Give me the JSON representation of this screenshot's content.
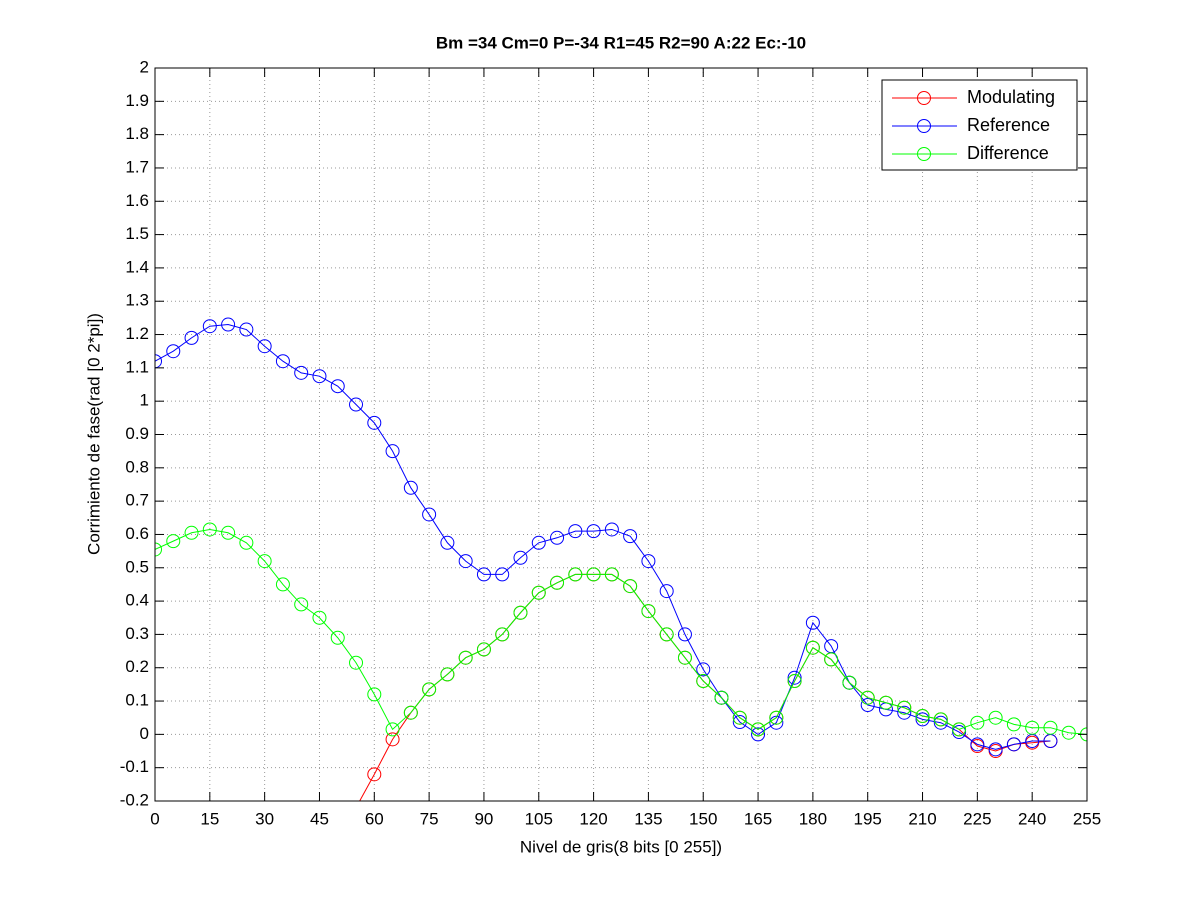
{
  "chart_data": {
    "type": "line",
    "title": "Bm =34  Cm=0  P=-34  R1=45  R2=90  A:22  Ec:-10",
    "x_label": "Nivel de gris(8 bits [0 255])",
    "y_label": "Corrimiento de fase(rad [0 2*pi])",
    "x": [
      0,
      5,
      10,
      15,
      20,
      25,
      30,
      35,
      40,
      45,
      50,
      55,
      60,
      65,
      70,
      75,
      80,
      85,
      90,
      95,
      100,
      105,
      110,
      115,
      120,
      125,
      130,
      135,
      140,
      145,
      150,
      155,
      160,
      165,
      170,
      175,
      180,
      185,
      190,
      195,
      200,
      205,
      210,
      215,
      220,
      225,
      230,
      235,
      240,
      245,
      250,
      255
    ],
    "series": [
      {
        "name": "Modulating",
        "color": "#ff0000",
        "values": [
          null,
          null,
          null,
          null,
          null,
          null,
          null,
          null,
          null,
          null,
          null,
          -0.22,
          -0.12,
          -0.015,
          0.065,
          0.135,
          0.18,
          0.23,
          0.255,
          0.3,
          0.365,
          0.425,
          0.455,
          0.48,
          0.48,
          0.48,
          0.445,
          0.37,
          0.3,
          0.23,
          0.16,
          0.11,
          0.05,
          0.015,
          0.05,
          0.16,
          0.26,
          0.225,
          0.155,
          0.11,
          0.095,
          0.08,
          0.055,
          0.045,
          0.015,
          -0.035,
          -0.05,
          -0.03,
          -0.025,
          -0.02,
          null,
          null
        ]
      },
      {
        "name": "Reference",
        "color": "#0000ff",
        "values": [
          1.12,
          1.15,
          1.19,
          1.225,
          1.23,
          1.215,
          1.165,
          1.12,
          1.085,
          1.075,
          1.045,
          0.99,
          0.935,
          0.85,
          0.74,
          0.66,
          0.575,
          0.52,
          0.48,
          0.48,
          0.53,
          0.575,
          0.59,
          0.61,
          0.61,
          0.615,
          0.595,
          0.52,
          0.43,
          0.3,
          0.195,
          0.11,
          0.037,
          0.0,
          0.035,
          0.17,
          0.335,
          0.265,
          0.155,
          0.088,
          0.075,
          0.065,
          0.045,
          0.035,
          0.007,
          -0.03,
          -0.045,
          -0.03,
          -0.02,
          -0.02,
          null,
          null
        ]
      },
      {
        "name": "Difference",
        "color": "#00ff00",
        "values": [
          0.555,
          0.58,
          0.605,
          0.615,
          0.605,
          0.575,
          0.52,
          0.45,
          0.39,
          0.35,
          0.29,
          0.215,
          0.12,
          0.015,
          0.065,
          0.135,
          0.18,
          0.23,
          0.255,
          0.3,
          0.365,
          0.425,
          0.455,
          0.48,
          0.48,
          0.48,
          0.445,
          0.37,
          0.3,
          0.23,
          0.16,
          0.11,
          0.05,
          0.015,
          0.05,
          0.16,
          0.26,
          0.225,
          0.155,
          0.11,
          0.095,
          0.08,
          0.055,
          0.045,
          0.015,
          0.035,
          0.05,
          0.03,
          0.02,
          0.02,
          0.005,
          0.0
        ]
      }
    ],
    "xlim": [
      0,
      255
    ],
    "xticks": [
      0,
      15,
      30,
      45,
      60,
      75,
      90,
      105,
      120,
      135,
      150,
      165,
      180,
      195,
      210,
      225,
      240,
      255
    ],
    "ylim": [
      -0.2,
      2
    ],
    "yticks": [
      -0.2,
      -0.1,
      0,
      0.1,
      0.2,
      0.3,
      0.4,
      0.5,
      0.6,
      0.7,
      0.8,
      0.9,
      1,
      1.1,
      1.2,
      1.3,
      1.4,
      1.5,
      1.6,
      1.7,
      1.8,
      1.9,
      2
    ],
    "grid": true,
    "legend": "top-right"
  }
}
